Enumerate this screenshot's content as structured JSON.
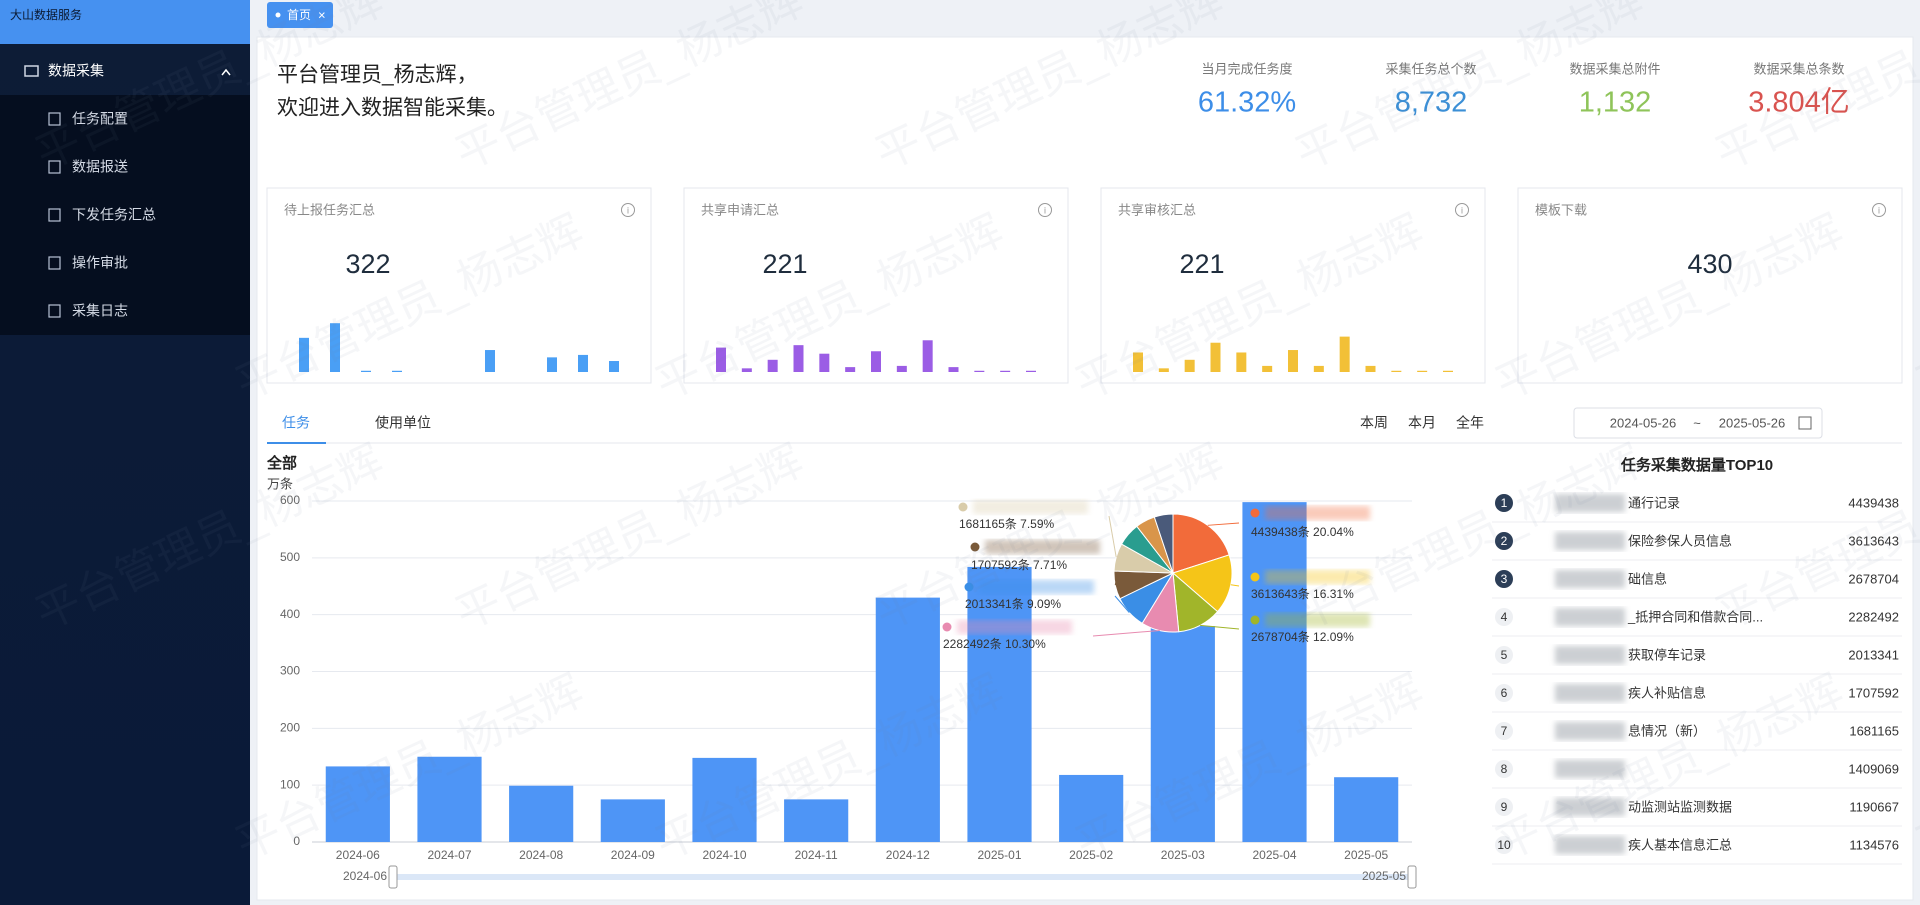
{
  "sidebar": {
    "brand": "大山数据服务",
    "menu": {
      "label": "数据采集",
      "items": [
        "任务配置",
        "数据报送",
        "下发任务汇总",
        "操作审批",
        "采集日志"
      ]
    }
  },
  "tab": "首页",
  "watermark": "平台管理员_杨志辉",
  "welcome": [
    "平台管理员_杨志辉，",
    "欢迎进入数据智能采集。"
  ],
  "stats": [
    {
      "label": "当月完成任务度",
      "value": "61.32%",
      "color": "#3d8ee8"
    },
    {
      "label": "采集任务总个数",
      "value": "8,732",
      "color": "#3b8fd6"
    },
    {
      "label": "数据采集总附件",
      "value": "1,132",
      "color": "#8fc45a"
    },
    {
      "label": "数据采集总条数",
      "value": "3.804亿",
      "color": "#d9534f"
    }
  ],
  "cards": [
    {
      "title": "待上报任务汇总",
      "value": "322",
      "color": "#4a9ff5",
      "bars": [
        28,
        40,
        1,
        1,
        0,
        0,
        18,
        0,
        12,
        14,
        9
      ]
    },
    {
      "title": "共享申请汇总",
      "value": "221",
      "color": "#9b5de5",
      "bars": [
        20,
        3,
        10,
        22,
        15,
        4,
        17,
        5,
        26,
        4,
        1,
        1,
        1
      ]
    },
    {
      "title": "共享审核汇总",
      "value": "221",
      "color": "#f2c037",
      "bars": [
        16,
        3,
        10,
        24,
        16,
        5,
        18,
        5,
        29,
        5,
        1,
        1,
        1
      ]
    },
    {
      "title": "模板下载",
      "value": "430"
    }
  ],
  "chart_tabs": [
    "任务",
    "使用单位"
  ],
  "periods": [
    "本周",
    "本月",
    "全年"
  ],
  "date_range": {
    "start": "2024-05-26",
    "separator": "~",
    "end": "2025-05-26"
  },
  "chart_data": [
    {
      "type": "bar",
      "title": "全部",
      "y_label": "万条",
      "categories": [
        "2024-06",
        "2024-07",
        "2024-08",
        "2024-09",
        "2024-10",
        "2024-11",
        "2024-12",
        "2025-01",
        "2025-02",
        "2025-03",
        "2025-04",
        "2025-05"
      ],
      "values": [
        133,
        150,
        99,
        75,
        148,
        75,
        430,
        484,
        118,
        380,
        598,
        114
      ],
      "color": "#4e95f6",
      "ylim": [
        0,
        600
      ],
      "yticks": [
        0,
        100,
        200,
        300,
        400,
        500,
        600
      ],
      "grid": true
    },
    {
      "type": "pie",
      "values": [
        4439438,
        3613643,
        2678704,
        2282492,
        2013341,
        1707592,
        1681165,
        1409069,
        1190667,
        1134576
      ],
      "value_labels": [
        "4439438条  20.04%",
        "3613643条  16.31%",
        "2678704条  12.09%",
        "2282492条  10.30%",
        "2013341条  9.09%",
        "1707592条  7.71%",
        "1681165条  7.59%",
        null,
        null,
        null
      ],
      "colors": [
        "#f26b3a",
        "#f5c518",
        "#a1b52a",
        "#e88bb0",
        "#3a8ee6",
        "#7a5a3a",
        "#d9ccaa",
        "#2a9d8f",
        "#d9954a",
        "#4a5a7a"
      ]
    }
  ],
  "top10": {
    "title": "任务采集数据量TOP10",
    "rows": [
      {
        "rank": 1,
        "name": "通行记录",
        "value": 4439438
      },
      {
        "rank": 2,
        "name": "保险参保人员信息",
        "value": 3613643
      },
      {
        "rank": 3,
        "name": "础信息",
        "value": 2678704
      },
      {
        "rank": 4,
        "name": "_抵押合同和借款合同...",
        "value": 2282492
      },
      {
        "rank": 5,
        "name": "获取停车记录",
        "value": 2013341
      },
      {
        "rank": 6,
        "name": "疾人补贴信息",
        "value": 1707592
      },
      {
        "rank": 7,
        "name": "息情况（新）",
        "value": 1681165
      },
      {
        "rank": 8,
        "name": null,
        "value": 1409069
      },
      {
        "rank": 9,
        "name": "动监测站监测数据",
        "value": 1190667
      },
      {
        "rank": 10,
        "name": "疾人基本信息汇总",
        "value": 1134576
      }
    ]
  }
}
